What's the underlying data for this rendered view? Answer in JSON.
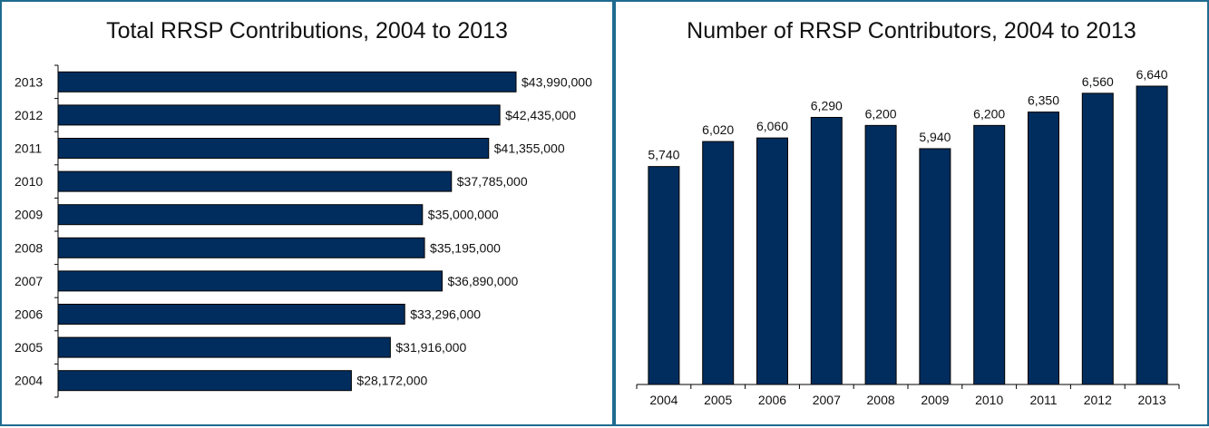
{
  "colors": {
    "bar": "#002d5e",
    "border": "#1f6b8f"
  },
  "chart_data": [
    {
      "type": "bar",
      "orientation": "horizontal",
      "title": "Total RRSP Contributions, 2004 to 2013",
      "categories": [
        "2013",
        "2012",
        "2011",
        "2010",
        "2009",
        "2008",
        "2007",
        "2006",
        "2005",
        "2004"
      ],
      "values": [
        43990000,
        42435000,
        41355000,
        37785000,
        35000000,
        35195000,
        36890000,
        33296000,
        31916000,
        28172000
      ],
      "data_labels": [
        "$43,990,000",
        "$42,435,000",
        "$41,355,000",
        "$37,785,000",
        "$35,000,000",
        "$35,195,000",
        "$36,890,000",
        "$33,296,000",
        "$31,916,000",
        "$28,172,000"
      ],
      "xlim": [
        0,
        43990000
      ],
      "grid": false,
      "xlabel": "",
      "ylabel": ""
    },
    {
      "type": "bar",
      "orientation": "vertical",
      "title": "Number of RRSP Contributors, 2004 to 2013",
      "categories": [
        "2004",
        "2005",
        "2006",
        "2007",
        "2008",
        "2009",
        "2010",
        "2011",
        "2012",
        "2013"
      ],
      "values": [
        5740,
        6020,
        6060,
        6290,
        6200,
        5940,
        6200,
        6350,
        6560,
        6640
      ],
      "data_labels": [
        "5,740",
        "6,020",
        "6,060",
        "6,290",
        "6,200",
        "5,940",
        "6,200",
        "6,350",
        "6,560",
        "6,640"
      ],
      "ylim": [
        3300,
        6640
      ],
      "grid": false,
      "xlabel": "",
      "ylabel": ""
    }
  ]
}
